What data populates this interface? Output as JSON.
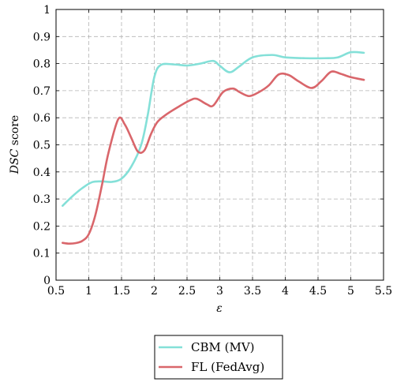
{
  "chart_data": {
    "type": "line",
    "xlabel": "ε",
    "ylabel_italic": "DSC",
    "ylabel_rest": " score",
    "xlim": [
      0.5,
      5.5
    ],
    "ylim": [
      0,
      1
    ],
    "x_ticks": [
      0.5,
      1,
      1.5,
      2,
      2.5,
      3,
      3.5,
      4,
      4.5,
      5,
      5.5
    ],
    "x_tick_labels": [
      "0.5",
      "1",
      "1.5",
      "2",
      "2.5",
      "3",
      "3.5",
      "4",
      "4.5",
      "5",
      "5.5"
    ],
    "y_ticks": [
      0,
      0.1,
      0.2,
      0.3,
      0.4,
      0.5,
      0.6,
      0.7,
      0.8,
      0.9,
      1
    ],
    "y_tick_labels": [
      "0",
      "0.1",
      "0.2",
      "0.3",
      "0.4",
      "0.5",
      "0.6",
      "0.7",
      "0.8",
      "0.9",
      "1"
    ],
    "grid": true,
    "legend_position": "bottom-center",
    "series": [
      {
        "name": "CBM (MV)",
        "color": "#84e0d8",
        "x": [
          0.6,
          0.75,
          0.9,
          1.05,
          1.2,
          1.35,
          1.5,
          1.65,
          1.8,
          1.9,
          2.0,
          2.1,
          2.3,
          2.5,
          2.7,
          2.9,
          3.0,
          3.15,
          3.3,
          3.5,
          3.8,
          4.0,
          4.3,
          4.6,
          4.8,
          5.0,
          5.2
        ],
        "y": [
          0.275,
          0.31,
          0.34,
          0.362,
          0.365,
          0.363,
          0.375,
          0.42,
          0.5,
          0.61,
          0.75,
          0.795,
          0.797,
          0.793,
          0.8,
          0.81,
          0.792,
          0.768,
          0.79,
          0.823,
          0.832,
          0.823,
          0.82,
          0.82,
          0.823,
          0.842,
          0.84
        ]
      },
      {
        "name": "FL (FedAvg)",
        "color": "#d9666b",
        "x": [
          0.6,
          0.7,
          0.8,
          0.9,
          1.0,
          1.1,
          1.2,
          1.3,
          1.45,
          1.55,
          1.65,
          1.75,
          1.85,
          1.95,
          2.05,
          2.2,
          2.4,
          2.55,
          2.65,
          2.8,
          2.9,
          3.05,
          3.2,
          3.3,
          3.45,
          3.6,
          3.75,
          3.9,
          4.05,
          4.2,
          4.4,
          4.55,
          4.7,
          4.85,
          5.0,
          5.2
        ],
        "y": [
          0.138,
          0.135,
          0.137,
          0.145,
          0.17,
          0.24,
          0.35,
          0.47,
          0.595,
          0.575,
          0.525,
          0.475,
          0.48,
          0.54,
          0.585,
          0.615,
          0.645,
          0.665,
          0.67,
          0.65,
          0.645,
          0.695,
          0.708,
          0.695,
          0.68,
          0.695,
          0.72,
          0.76,
          0.758,
          0.735,
          0.71,
          0.735,
          0.77,
          0.762,
          0.75,
          0.74
        ]
      }
    ]
  }
}
